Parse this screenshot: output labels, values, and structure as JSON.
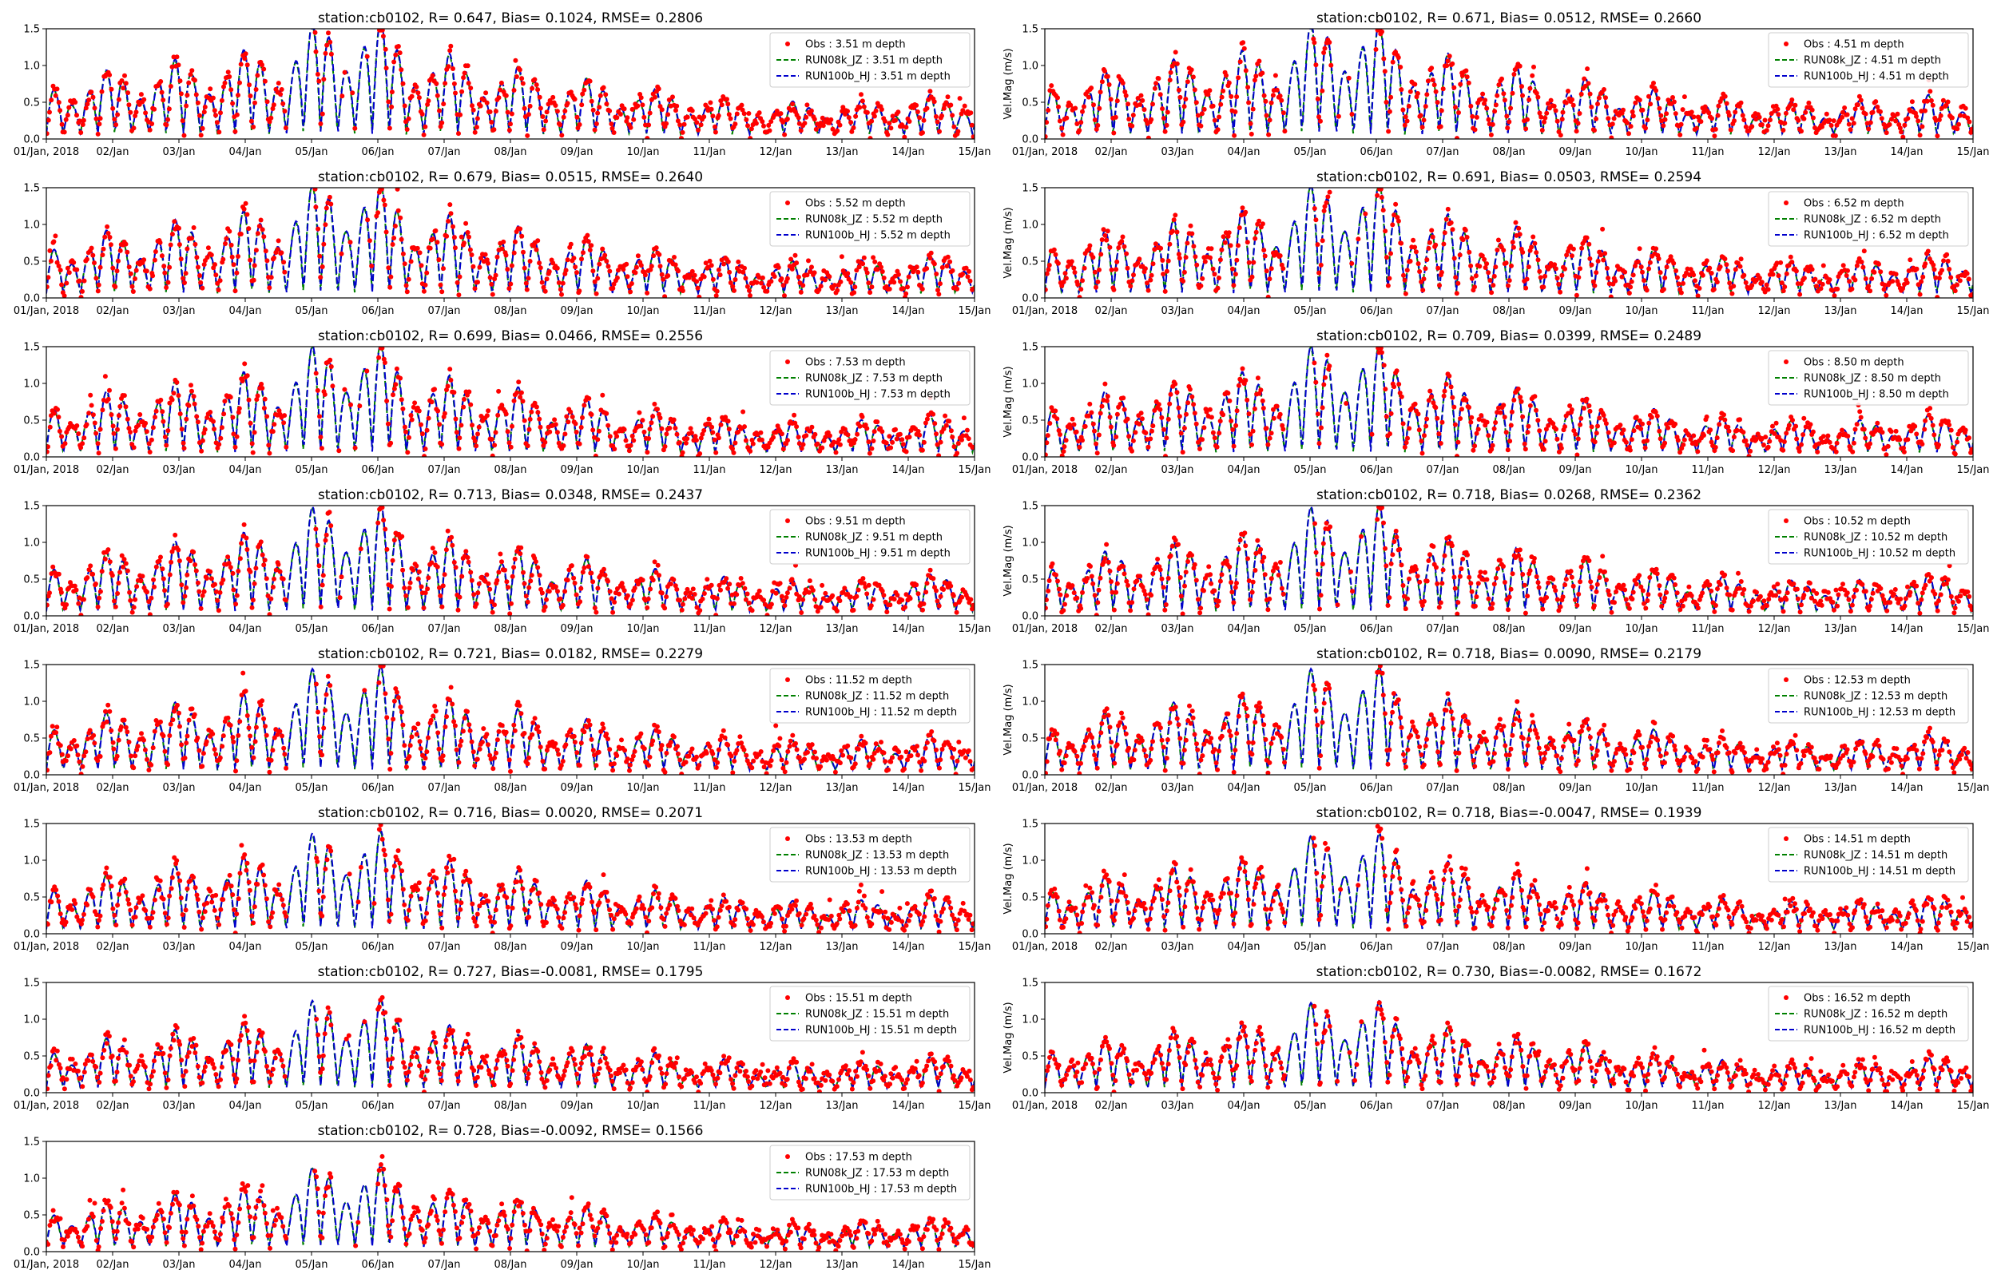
{
  "figure": {
    "ylim": [
      0,
      1.5
    ]
  },
  "chart_data": {
    "type": "line",
    "x_tick_labels": [
      "01/Jan, 2018",
      "02/Jan",
      "03/Jan",
      "04/Jan",
      "05/Jan",
      "06/Jan",
      "07/Jan",
      "08/Jan",
      "09/Jan",
      "10/Jan",
      "11/Jan",
      "12/Jan",
      "13/Jan",
      "14/Jan",
      "15/Jan"
    ],
    "y_tick_labels": [
      "0.0",
      "0.5",
      "1.0",
      "1.5"
    ],
    "x_range_days": [
      0,
      14
    ],
    "ylim": [
      0,
      1.5
    ],
    "series_styles": [
      {
        "name": "Obs",
        "marker": "dot",
        "color": "#ff0000"
      },
      {
        "name": "RUN08k_JZ",
        "line": "dashed",
        "color": "#008000"
      },
      {
        "name": "RUN100b_HJ",
        "line": "dashed",
        "color": "#0000cc"
      }
    ],
    "panels": [
      {
        "title": "station:cb0102, R= 0.647, Bias= 0.1024, RMSE= 0.2806",
        "ylabel": "",
        "legend": [
          "Obs : 3.51 m depth",
          "RUN08k_JZ : 3.51 m depth",
          "RUN100b_HJ : 3.51 m depth"
        ],
        "amp": 1.05
      },
      {
        "title": "station:cb0102, R= 0.671, Bias= 0.0512, RMSE= 0.2660",
        "ylabel": "Vel.Mag (m/s)",
        "legend": [
          "Obs : 4.51 m depth",
          "RUN08k_JZ : 4.51 m depth",
          "RUN100b_HJ : 4.51 m depth"
        ],
        "amp": 1.05
      },
      {
        "title": "station:cb0102, R= 0.679, Bias= 0.0515, RMSE= 0.2640",
        "ylabel": "",
        "legend": [
          "Obs : 5.52 m depth",
          "RUN08k_JZ : 5.52 m depth",
          "RUN100b_HJ : 5.52 m depth"
        ],
        "amp": 1.03
      },
      {
        "title": "station:cb0102, R= 0.691, Bias= 0.0503, RMSE= 0.2594",
        "ylabel": "Vel.Mag (m/s)",
        "legend": [
          "Obs : 6.52 m depth",
          "RUN08k_JZ : 6.52 m depth",
          "RUN100b_HJ : 6.52 m depth"
        ],
        "amp": 1.03
      },
      {
        "title": "station:cb0102, R= 0.699, Bias= 0.0466, RMSE= 0.2556",
        "ylabel": "",
        "legend": [
          "Obs : 7.53 m depth",
          "RUN08k_JZ : 7.53 m depth",
          "RUN100b_HJ : 7.53 m depth"
        ],
        "amp": 1.0
      },
      {
        "title": "station:cb0102, R= 0.709, Bias= 0.0399, RMSE= 0.2489",
        "ylabel": "Vel.Mag (m/s)",
        "legend": [
          "Obs : 8.50 m depth",
          "RUN08k_JZ : 8.50 m depth",
          "RUN100b_HJ : 8.50 m depth"
        ],
        "amp": 1.0
      },
      {
        "title": "station:cb0102, R= 0.713, Bias= 0.0348, RMSE= 0.2437",
        "ylabel": "",
        "legend": [
          "Obs : 9.51 m depth",
          "RUN08k_JZ : 9.51 m depth",
          "RUN100b_HJ : 9.51 m depth"
        ],
        "amp": 0.98
      },
      {
        "title": "station:cb0102, R= 0.718, Bias= 0.0268, RMSE= 0.2362",
        "ylabel": "Vel.Mag (m/s)",
        "legend": [
          "Obs : 10.52 m depth",
          "RUN08k_JZ : 10.52 m depth",
          "RUN100b_HJ : 10.52 m depth"
        ],
        "amp": 0.98
      },
      {
        "title": "station:cb0102, R= 0.721, Bias= 0.0182, RMSE= 0.2279",
        "ylabel": "",
        "legend": [
          "Obs : 11.52 m depth",
          "RUN08k_JZ : 11.52 m depth",
          "RUN100b_HJ : 11.52 m depth"
        ],
        "amp": 0.95
      },
      {
        "title": "station:cb0102, R= 0.718, Bias= 0.0090, RMSE= 0.2179",
        "ylabel": "Vel.Mag (m/s)",
        "legend": [
          "Obs : 12.53 m depth",
          "RUN08k_JZ : 12.53 m depth",
          "RUN100b_HJ : 12.53 m depth"
        ],
        "amp": 0.95
      },
      {
        "title": "station:cb0102, R= 0.716, Bias= 0.0020, RMSE= 0.2071",
        "ylabel": "",
        "legend": [
          "Obs : 13.53 m depth",
          "RUN08k_JZ : 13.53 m depth",
          "RUN100b_HJ : 13.53 m depth"
        ],
        "amp": 0.9
      },
      {
        "title": "station:cb0102, R= 0.718, Bias=-0.0047, RMSE= 0.1939",
        "ylabel": "Vel.Mag (m/s)",
        "legend": [
          "Obs : 14.51 m depth",
          "RUN08k_JZ : 14.51 m depth",
          "RUN100b_HJ : 14.51 m depth"
        ],
        "amp": 0.88
      },
      {
        "title": "station:cb0102, R= 0.727, Bias=-0.0081, RMSE= 0.1795",
        "ylabel": "",
        "legend": [
          "Obs : 15.51 m depth",
          "RUN08k_JZ : 15.51 m depth",
          "RUN100b_HJ : 15.51 m depth"
        ],
        "amp": 0.82
      },
      {
        "title": "station:cb0102, R= 0.730, Bias=-0.0082, RMSE= 0.1672",
        "ylabel": "Vel.Mag (m/s)",
        "legend": [
          "Obs : 16.52 m depth",
          "RUN08k_JZ : 16.52 m depth",
          "RUN100b_HJ : 16.52 m depth"
        ],
        "amp": 0.8
      },
      {
        "title": "station:cb0102, R= 0.728, Bias=-0.0092, RMSE= 0.1566",
        "ylabel": "",
        "legend": [
          "Obs : 17.53 m depth",
          "RUN08k_JZ : 17.53 m depth",
          "RUN100b_HJ : 17.53 m depth"
        ],
        "amp": 0.75
      }
    ]
  }
}
